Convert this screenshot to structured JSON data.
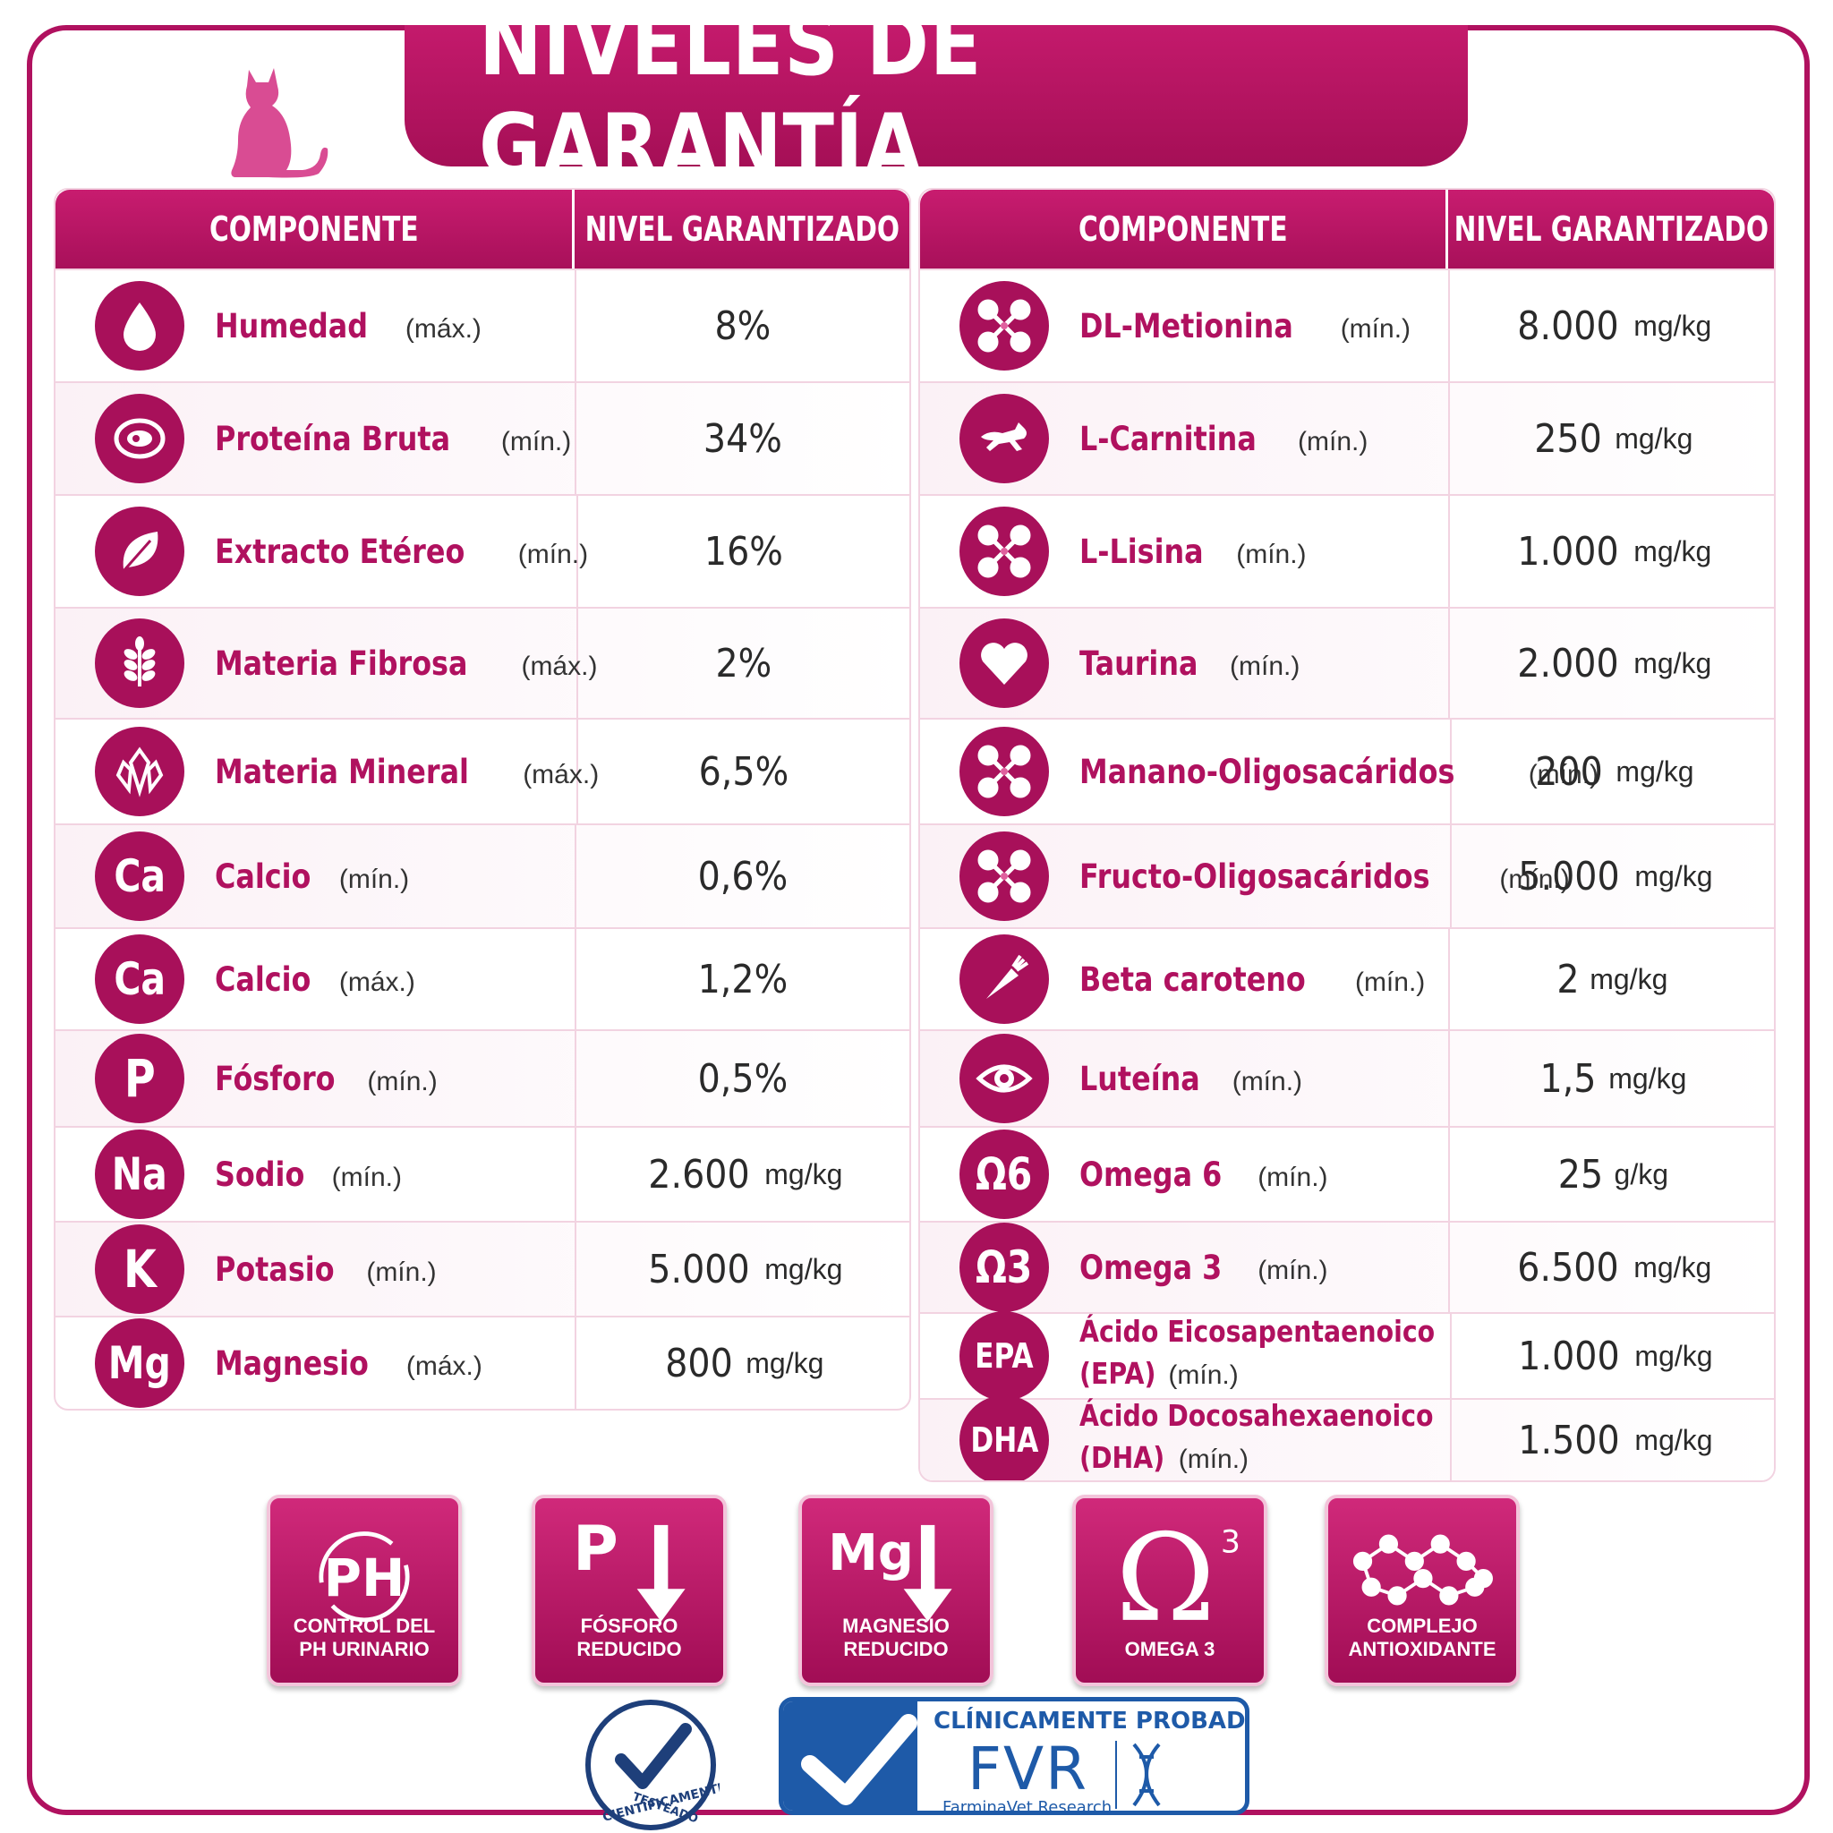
{
  "title": "NIVELES DE GARANTÍA",
  "left_table": {
    "headers": [
      "COMPONENTE",
      "NIVEL GARANTIZADO"
    ],
    "rows": [
      {
        "icon": "water-drop-icon",
        "name": "Humedad",
        "qual": "(máx.)",
        "value": "8%",
        "unit": ""
      },
      {
        "icon": "meat-icon",
        "name": "Proteína Bruta",
        "qual": "(mín.)",
        "value": "34%",
        "unit": ""
      },
      {
        "icon": "leaf-icon",
        "name": "Extracto Etéreo",
        "qual": "(mín.)",
        "value": "16%",
        "unit": ""
      },
      {
        "icon": "wheat-icon",
        "name": "Materia Fibrosa",
        "qual": "(máx.)",
        "value": "2%",
        "unit": ""
      },
      {
        "icon": "crystal-icon",
        "name": "Materia Mineral",
        "qual": "(máx.)",
        "value": "6,5%",
        "unit": ""
      },
      {
        "icon": "calcium-icon",
        "icon_text": "Ca",
        "name": "Calcio",
        "qual": "(mín.)",
        "value": "0,6%",
        "unit": ""
      },
      {
        "icon": "calcium-up-icon",
        "icon_text": "Ca",
        "name": "Calcio",
        "qual": "(máx.)",
        "value": "1,2%",
        "unit": ""
      },
      {
        "icon": "phosphorus-icon",
        "icon_text": "P",
        "name": "Fósforo",
        "qual": "(mín.)",
        "value": "0,5%",
        "unit": ""
      },
      {
        "icon": "sodium-icon",
        "icon_text": "Na",
        "name": "Sodio",
        "qual": "(mín.)",
        "value": "2.600",
        "unit": "mg/kg"
      },
      {
        "icon": "potassium-icon",
        "icon_text": "K",
        "name": "Potasio",
        "qual": "(mín.)",
        "value": "5.000",
        "unit": "mg/kg"
      },
      {
        "icon": "magnesium-icon",
        "icon_text": "Mg",
        "name": "Magnesio",
        "qual": "(máx.)",
        "value": "800",
        "unit": "mg/kg"
      }
    ]
  },
  "right_table": {
    "headers": [
      "COMPONENTE",
      "NIVEL GARANTIZADO"
    ],
    "rows": [
      {
        "icon": "molecule-icon",
        "name": "DL-Metionina",
        "qual": "(mín.)",
        "value": "8.000",
        "unit": "mg/kg"
      },
      {
        "icon": "running-cat-icon",
        "name": "L-Carnitina",
        "qual": "(mín.)",
        "value": "250",
        "unit": "mg/kg"
      },
      {
        "icon": "molecule-icon",
        "name": "L-Lisina",
        "qual": "(mín.)",
        "value": "1.000",
        "unit": "mg/kg"
      },
      {
        "icon": "heart-icon",
        "name": "Taurina",
        "qual": "(mín.)",
        "value": "2.000",
        "unit": "mg/kg"
      },
      {
        "icon": "molecule-icon",
        "name": "Manano-Oligosacáridos",
        "qual": "(mín.)",
        "value": "200",
        "unit": "mg/kg"
      },
      {
        "icon": "molecule-icon",
        "name": "Fructo-Oligosacáridos",
        "qual": "(mín.)",
        "value": "5.000",
        "unit": "mg/kg"
      },
      {
        "icon": "carrot-icon",
        "name": "Beta caroteno",
        "qual": "(mín.)",
        "value": "2",
        "unit": "mg/kg"
      },
      {
        "icon": "eye-icon",
        "name": "Luteína",
        "qual": "(mín.)",
        "value": "1,5",
        "unit": "mg/kg"
      },
      {
        "icon": "omega6-icon",
        "icon_text": "Ω6",
        "name": "Omega 6",
        "qual": "(mín.)",
        "value": "25",
        "unit": "g/kg"
      },
      {
        "icon": "omega3-icon",
        "icon_text": "Ω3",
        "name": "Omega 3",
        "qual": "(mín.)",
        "value": "6.500",
        "unit": "mg/kg"
      },
      {
        "icon": "epa-icon",
        "icon_text": "EPA",
        "name": "Ácido Eicosapentaenoico",
        "name2": "(EPA)",
        "qual": "(mín.)",
        "value": "1.000",
        "unit": "mg/kg"
      },
      {
        "icon": "dha-icon",
        "icon_text": "DHA",
        "name": "Ácido Docosahexaenoico",
        "name2": "(DHA)",
        "qual": "(mín.)",
        "value": "1.500",
        "unit": "mg/kg"
      }
    ]
  },
  "badges": [
    {
      "icon": "ph-cycle-icon",
      "symbol": "PH",
      "label": "CONTROL DEL\nPH URINARIO"
    },
    {
      "icon": "phosphorus-down-icon",
      "symbol": "P",
      "label": "FÓSFORO\nREDUCIDO"
    },
    {
      "icon": "magnesium-down-icon",
      "symbol": "Mg",
      "label": "MAGNESIO\nREDUCIDO"
    },
    {
      "icon": "omega3-badge-icon",
      "symbol": "Ω",
      "sup": "3",
      "label": "OMEGA 3"
    },
    {
      "icon": "antioxidant-molecule-icon",
      "symbol": "",
      "label": "COMPLEJO\nANTIOXIDANTE"
    }
  ],
  "tested_seal": {
    "line1": "TESTEADO",
    "line2": "CIENTÍFICAMENTE"
  },
  "fvr": {
    "top": "CLÍNICAMENTE PROBADO",
    "logo": "FVR",
    "sub": "FarminaVet Research"
  },
  "colors": {
    "primary": "#a8105a",
    "accent": "#c81c6f",
    "blue": "#1e5aa8"
  }
}
